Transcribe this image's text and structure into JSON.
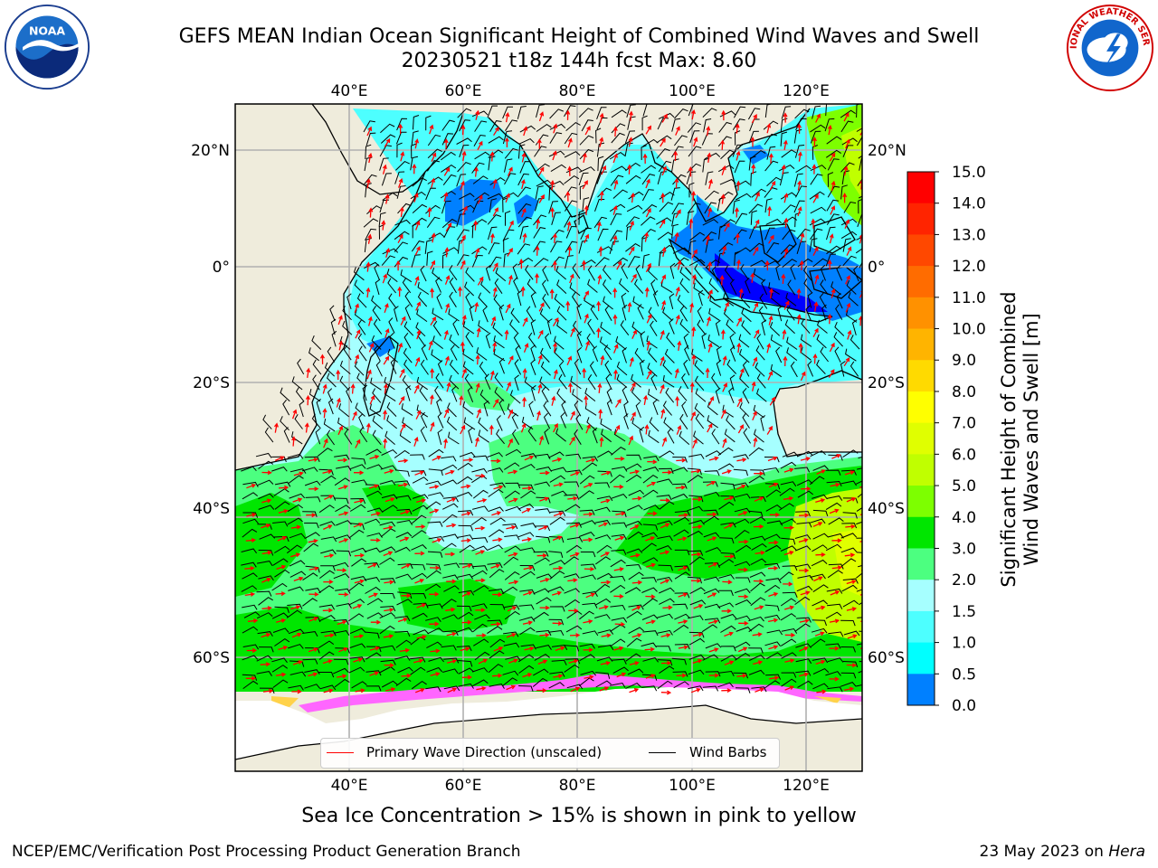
{
  "title_line1": "GEFS MEAN Indian Ocean Significant Height of Combined Wind Waves and Swell",
  "title_line2": "20230521 t18z 144h fcst   Max: 8.60",
  "map": {
    "lon_ticks": [
      "40°E",
      "60°E",
      "80°E",
      "100°E",
      "120°E"
    ],
    "lat_ticks_left": [
      "20°N",
      "0°",
      "20°S",
      "40°S",
      "60°S"
    ],
    "lat_ticks_right": [
      "20°N",
      "0°",
      "20°S",
      "40°S",
      "60°S"
    ],
    "land_color": "#efecdc",
    "ice_color": "#ffffff"
  },
  "legend": {
    "primary_wave": "Primary Wave Direction (unscaled)",
    "wind_barbs": "Wind Barbs",
    "primary_wave_color": "#ff0000",
    "wind_barbs_color": "#000000"
  },
  "colorbar": {
    "label_line1": "Significant Height of Combined",
    "label_line2": "Wind Waves and Swell [m]",
    "ticks": [
      "15.0",
      "14.0",
      "13.0",
      "12.0",
      "11.0",
      "10.0",
      "9.0",
      "8.0",
      "7.0",
      "6.0",
      "5.0",
      "4.0",
      "3.0",
      "2.0",
      "1.5",
      "1.0",
      "0.5",
      "0.0"
    ],
    "colors": [
      "#ff0000",
      "#ff2400",
      "#ff4800",
      "#ff6c00",
      "#ff9100",
      "#ffb400",
      "#ffda00",
      "#ffff00",
      "#e0ff00",
      "#c0ff00",
      "#7dff00",
      "#00e600",
      "#4cff80",
      "#a6ffff",
      "#4dffff",
      "#00ffff",
      "#0080ff",
      "#0000ff"
    ]
  },
  "subcaption": "Sea Ice Concentration > 15% is shown in pink to yellow",
  "footer_left": "NCEP/EMC/Verification Post Processing Product Generation Branch",
  "footer_date": "23 May 2023 on",
  "footer_host": "Hera",
  "logos": {
    "noaa_text": "NOAA",
    "nws_text": "NATIONAL WEATHER SERVICE"
  }
}
